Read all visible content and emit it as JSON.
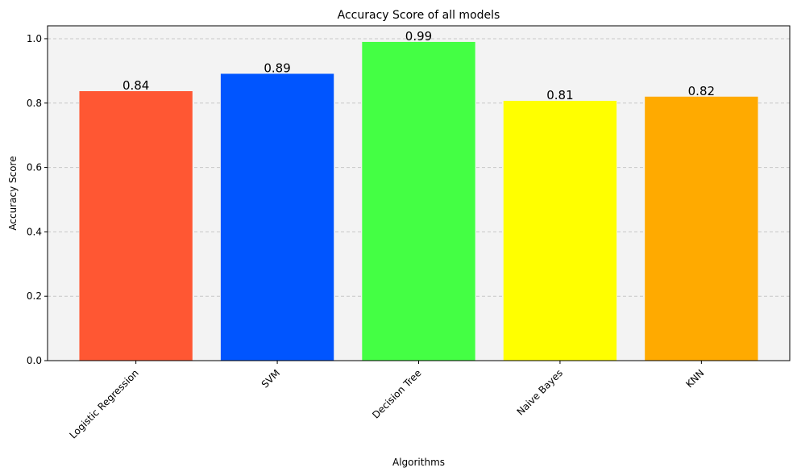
{
  "chart_data": {
    "type": "bar",
    "title": "Accuracy Score of all models",
    "xlabel": "Algorithms",
    "ylabel": "Accuracy Score",
    "categories": [
      "Logistic Regression",
      "SVM",
      "Decision Tree",
      "Naive Bayes",
      "KNN"
    ],
    "values": [
      0.837,
      0.891,
      0.99,
      0.807,
      0.82
    ],
    "value_labels": [
      "0.84",
      "0.89",
      "0.99",
      "0.81",
      "0.82"
    ],
    "colors": [
      "#ff5733",
      "#0055ff",
      "#44ff44",
      "#ffff00",
      "#ffaa00"
    ],
    "ylim": [
      0,
      1.04
    ],
    "yticks": [
      0.0,
      0.2,
      0.4,
      0.6,
      0.8,
      1.0
    ],
    "ytick_labels": [
      "0.0",
      "0.2",
      "0.4",
      "0.6",
      "0.8",
      "1.0"
    ],
    "grid": "y-dashed",
    "plot_background": "#f3f3f3"
  }
}
